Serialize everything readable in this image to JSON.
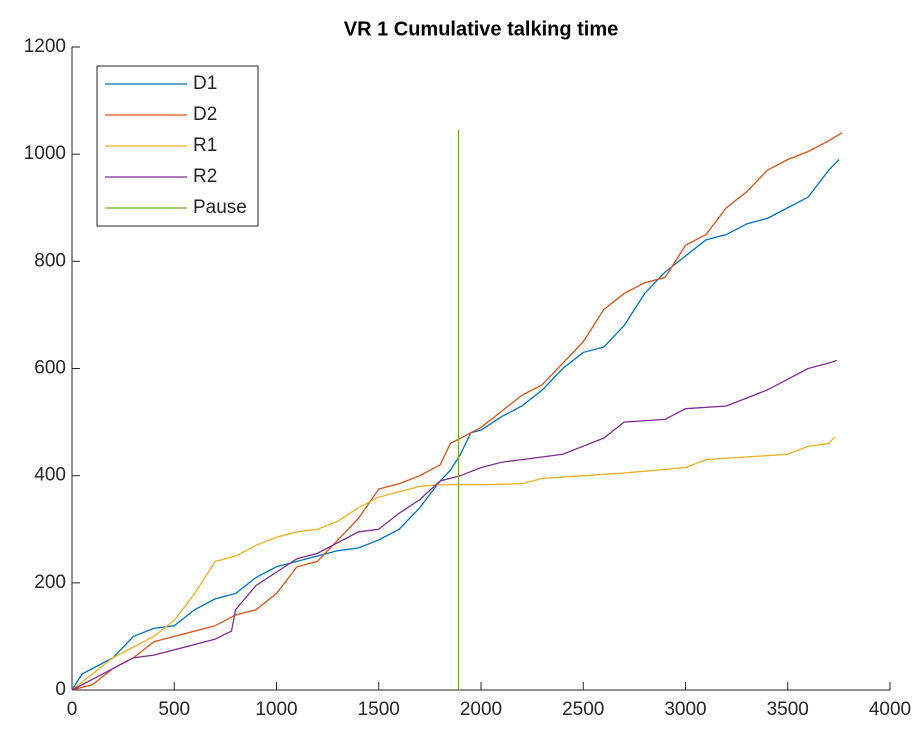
{
  "chart_data": {
    "type": "line",
    "title": "VR 1 Cumulative talking time",
    "xlim": [
      0,
      4000
    ],
    "xticks": [
      0,
      500,
      1000,
      1500,
      2000,
      2500,
      3000,
      3500,
      4000
    ],
    "ylim": [
      0,
      1200
    ],
    "yticks": [
      0,
      200,
      400,
      600,
      800,
      1000,
      1200
    ],
    "legend": "upper left",
    "series": [
      {
        "name": "D1",
        "color": "#0072BD",
        "x": [
          0,
          50,
          200,
          300,
          400,
          500,
          600,
          700,
          800,
          900,
          1000,
          1100,
          1200,
          1300,
          1400,
          1500,
          1600,
          1700,
          1800,
          1850,
          1900,
          1950,
          2000,
          2100,
          2200,
          2300,
          2400,
          2500,
          2600,
          2700,
          2800,
          2900,
          3000,
          3100,
          3200,
          3300,
          3400,
          3500,
          3600,
          3700,
          3750
        ],
        "values": [
          0,
          30,
          60,
          100,
          115,
          120,
          150,
          170,
          180,
          210,
          230,
          240,
          250,
          260,
          265,
          280,
          300,
          340,
          390,
          410,
          440,
          480,
          485,
          510,
          530,
          560,
          600,
          630,
          640,
          680,
          740,
          780,
          810,
          840,
          850,
          870,
          880,
          900,
          920,
          970,
          990
        ]
      },
      {
        "name": "D2",
        "color": "#D95319",
        "x": [
          0,
          100,
          200,
          300,
          400,
          500,
          600,
          700,
          800,
          900,
          1000,
          1100,
          1200,
          1300,
          1400,
          1500,
          1600,
          1700,
          1800,
          1850,
          1900,
          2000,
          2100,
          2200,
          2300,
          2400,
          2500,
          2600,
          2700,
          2800,
          2900,
          3000,
          3100,
          3200,
          3300,
          3400,
          3500,
          3600,
          3700,
          3765
        ],
        "values": [
          0,
          10,
          40,
          60,
          90,
          100,
          110,
          120,
          140,
          150,
          180,
          230,
          240,
          280,
          320,
          375,
          385,
          400,
          420,
          460,
          470,
          490,
          520,
          550,
          570,
          610,
          650,
          710,
          740,
          760,
          770,
          830,
          850,
          900,
          930,
          970,
          990,
          1005,
          1025,
          1040
        ]
      },
      {
        "name": "R1",
        "color": "#EDB120",
        "x": [
          0,
          100,
          200,
          300,
          400,
          500,
          600,
          700,
          800,
          900,
          1000,
          1100,
          1200,
          1300,
          1400,
          1500,
          1600,
          1700,
          1800,
          1900,
          2000,
          2200,
          2300,
          2500,
          2700,
          3000,
          3100,
          3300,
          3500,
          3600,
          3700,
          3730
        ],
        "values": [
          0,
          30,
          60,
          80,
          100,
          130,
          180,
          240,
          250,
          270,
          285,
          295,
          300,
          315,
          340,
          360,
          370,
          380,
          383,
          383,
          383,
          385,
          395,
          400,
          405,
          415,
          430,
          435,
          440,
          455,
          460,
          472
        ]
      },
      {
        "name": "R2",
        "color": "#7E2F8E",
        "x": [
          0,
          100,
          200,
          300,
          400,
          500,
          600,
          700,
          780,
          800,
          900,
          1000,
          1100,
          1200,
          1300,
          1400,
          1500,
          1600,
          1700,
          1800,
          1900,
          2000,
          2100,
          2200,
          2400,
          2500,
          2600,
          2700,
          2900,
          3000,
          3200,
          3300,
          3400,
          3500,
          3600,
          3700,
          3740
        ],
        "values": [
          0,
          20,
          40,
          60,
          65,
          75,
          85,
          95,
          110,
          150,
          195,
          220,
          245,
          255,
          275,
          295,
          300,
          330,
          355,
          390,
          400,
          415,
          425,
          430,
          440,
          455,
          470,
          500,
          505,
          525,
          530,
          545,
          560,
          580,
          600,
          610,
          615
        ]
      },
      {
        "name": "Pause",
        "color": "#77AC30",
        "x": [
          1890,
          1890
        ],
        "values": [
          0,
          1045
        ]
      }
    ]
  }
}
